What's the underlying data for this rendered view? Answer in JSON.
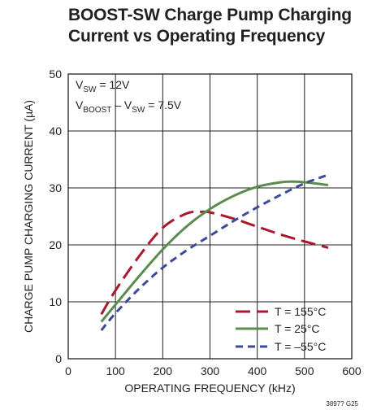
{
  "chart_data": {
    "type": "line",
    "title_lines": [
      "BOOST-SW Charge Pump Charging",
      "Current vs Operating Frequency"
    ],
    "xlabel": "OPERATING FREQUENCY (kHz)",
    "ylabel": "CHARGE PUMP CHARGING CURRENT (µA)",
    "xlim": [
      0,
      600
    ],
    "ylim": [
      0,
      50
    ],
    "xticks": [
      0,
      100,
      200,
      300,
      400,
      500,
      600
    ],
    "yticks": [
      0,
      10,
      20,
      30,
      40,
      50
    ],
    "grid": true,
    "legend_position": "bottom-right",
    "conditions": [
      {
        "main": "V",
        "sub": "SW",
        "rest": " = 12V"
      },
      {
        "main": "V",
        "sub": "BOOST",
        "mid": " – V",
        "sub2": "SW",
        "rest": " = 7.5V"
      }
    ],
    "series": [
      {
        "name": "T = 155°C",
        "color": "#a6192e",
        "dash": "long-dash",
        "x": [
          70,
          100,
          150,
          200,
          250,
          280,
          300,
          350,
          400,
          450,
          500,
          550
        ],
        "y": [
          7.8,
          12.0,
          18.0,
          23.0,
          25.5,
          25.8,
          25.7,
          24.6,
          23.2,
          21.8,
          20.6,
          19.5
        ]
      },
      {
        "name": "T = 25°C",
        "color": "#5b8c4e",
        "dash": "solid",
        "x": [
          70,
          100,
          150,
          200,
          250,
          300,
          350,
          400,
          450,
          475,
          500,
          550
        ],
        "y": [
          6.5,
          9.5,
          14.5,
          19.2,
          23.2,
          26.3,
          28.6,
          30.2,
          31.0,
          31.1,
          31.0,
          30.5
        ]
      },
      {
        "name": "T = –55°C",
        "color": "#3c4a9a",
        "dash": "short-dash",
        "x": [
          70,
          100,
          150,
          200,
          250,
          300,
          350,
          400,
          450,
          500,
          550
        ],
        "y": [
          5.0,
          8.0,
          12.3,
          16.0,
          19.0,
          21.6,
          24.2,
          26.6,
          28.8,
          30.8,
          32.3
        ]
      }
    ]
  },
  "doc_id": "3897? G25"
}
